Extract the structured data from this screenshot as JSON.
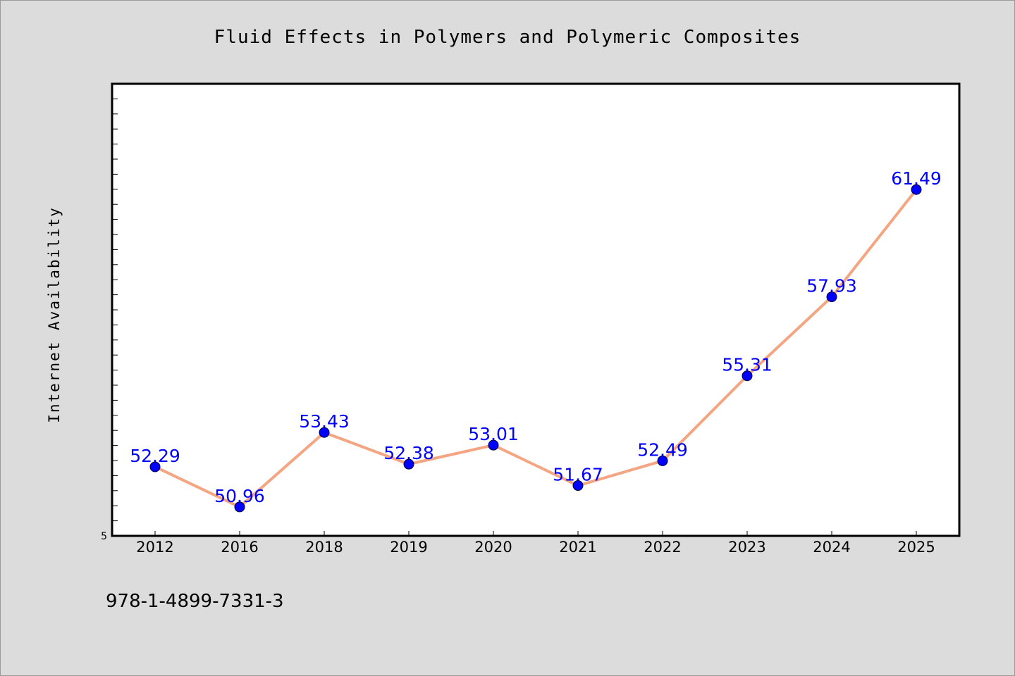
{
  "chart_data": {
    "type": "line",
    "title": "Fluid Effects in Polymers and Polymeric Composites",
    "xlabel": "",
    "ylabel": "Internet Availability",
    "categories": [
      "2012",
      "2016",
      "2018",
      "2019",
      "2020",
      "2021",
      "2022",
      "2023",
      "2024",
      "2025"
    ],
    "series": [
      {
        "values": [
          52.29,
          50.96,
          53.43,
          52.38,
          53.01,
          51.67,
          52.49,
          55.31,
          57.93,
          61.49
        ]
      }
    ],
    "data_labels": [
      "52.29",
      "50.96",
      "53.43",
      "52.38",
      "53.01",
      "51.67",
      "52.49",
      "55.31",
      "57.93",
      "61.49"
    ],
    "y_tick_labels": [
      "5"
    ],
    "ylim": [
      50,
      65
    ],
    "grid": false,
    "legend": "none",
    "colors": {
      "line": "#f4a582",
      "marker": "#0000ff",
      "data_label": "#0000ff",
      "plot_background": "#ffffff",
      "page_background": "#dcdcdc"
    }
  },
  "footer": {
    "isbn": "978-1-4899-7331-3"
  }
}
